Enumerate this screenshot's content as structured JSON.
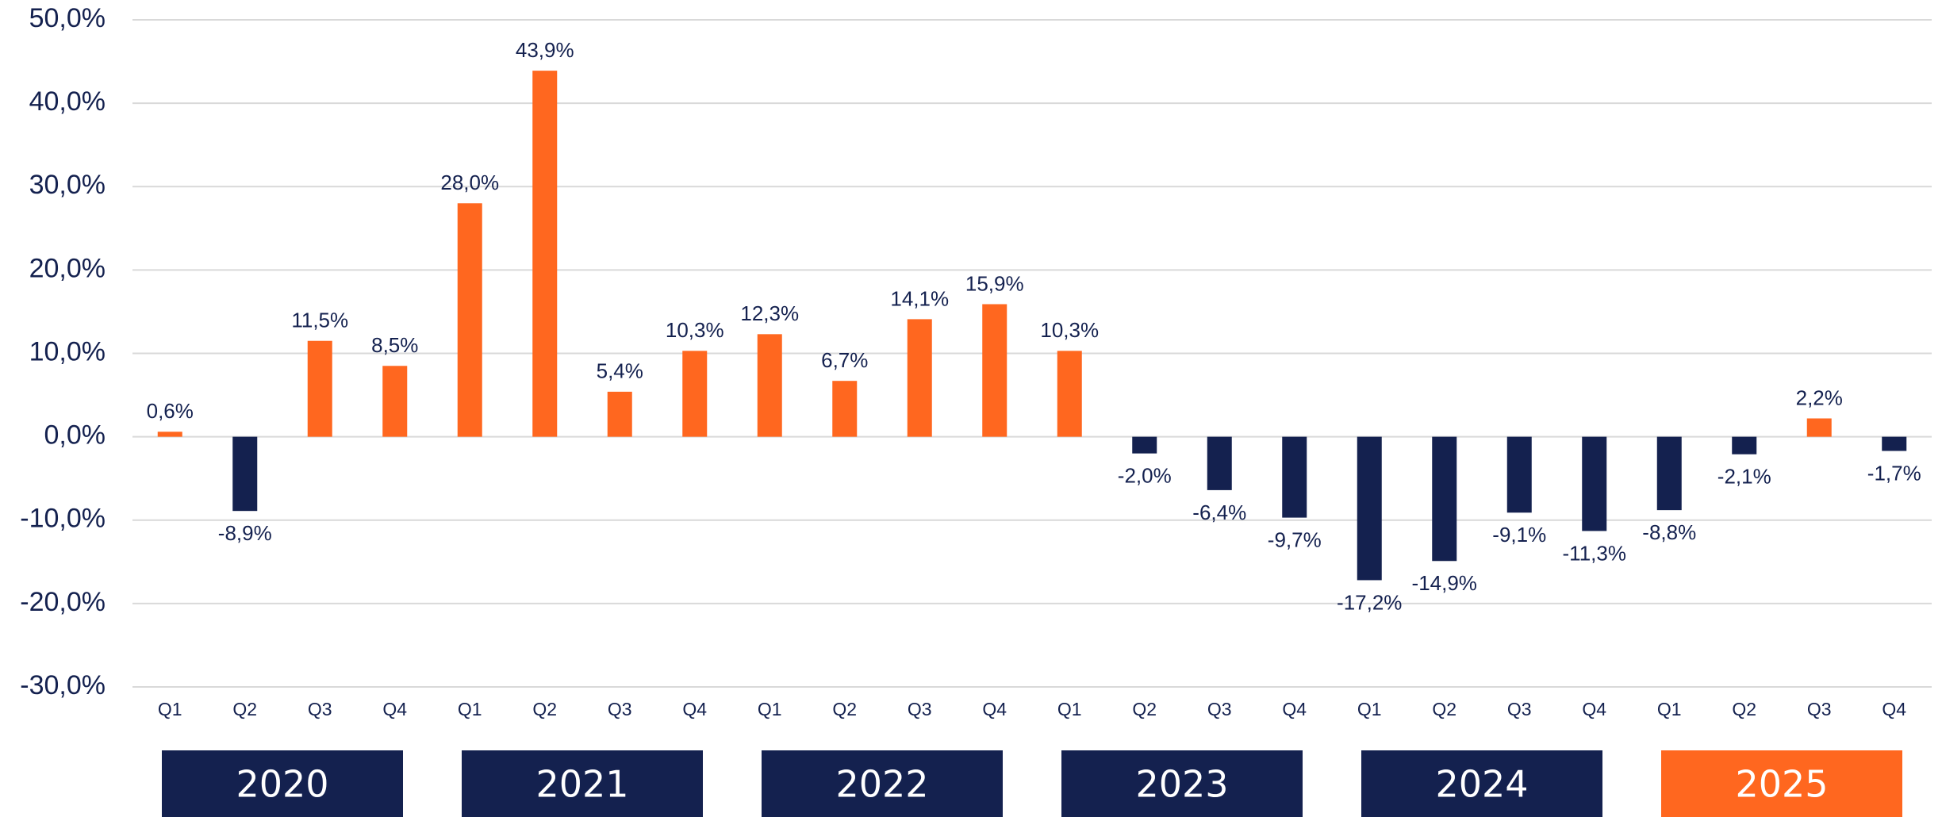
{
  "chart_data": {
    "type": "bar",
    "categories": [
      "Q1",
      "Q2",
      "Q3",
      "Q4",
      "Q1",
      "Q2",
      "Q3",
      "Q4",
      "Q1",
      "Q2",
      "Q3",
      "Q4",
      "Q1",
      "Q2",
      "Q3",
      "Q4",
      "Q1",
      "Q2",
      "Q3",
      "Q4",
      "Q1",
      "Q2",
      "Q3",
      "Q4"
    ],
    "values": [
      0.6,
      -8.9,
      11.5,
      8.5,
      28.0,
      43.9,
      5.4,
      10.3,
      12.3,
      6.7,
      14.1,
      15.9,
      10.3,
      -2.0,
      -6.4,
      -9.7,
      -17.2,
      -14.9,
      -9.1,
      -11.3,
      -8.8,
      -2.1,
      2.2,
      -1.7
    ],
    "value_labels": [
      "0,6%",
      "-8,9%",
      "11,5%",
      "8,5%",
      "28,0%",
      "43,9%",
      "5,4%",
      "10,3%",
      "12,3%",
      "6,7%",
      "14,1%",
      "15,9%",
      "10,3%",
      "-2,0%",
      "-6,4%",
      "-9,7%",
      "-17,2%",
      "-14,9%",
      "-9,1%",
      "-11,3%",
      "-8,8%",
      "-2,1%",
      "2,2%",
      "-1,7%"
    ],
    "colors": [
      "#ff671f",
      "#14214f",
      "#ff671f",
      "#ff671f",
      "#ff671f",
      "#ff671f",
      "#ff671f",
      "#ff671f",
      "#ff671f",
      "#ff671f",
      "#ff671f",
      "#ff671f",
      "#ff671f",
      "#14214f",
      "#14214f",
      "#14214f",
      "#14214f",
      "#14214f",
      "#14214f",
      "#14214f",
      "#14214f",
      "#14214f",
      "#ff671f",
      "#14214f"
    ],
    "groups": [
      {
        "label": "2020",
        "color": "#14214f"
      },
      {
        "label": "2021",
        "color": "#14214f"
      },
      {
        "label": "2022",
        "color": "#14214f"
      },
      {
        "label": "2023",
        "color": "#14214f"
      },
      {
        "label": "2024",
        "color": "#14214f"
      },
      {
        "label": "2025",
        "color": "#ff671f"
      }
    ],
    "ylim": [
      -30,
      50
    ],
    "yticks": [
      {
        "value": -30,
        "label": "-30,0%"
      },
      {
        "value": -20,
        "label": "-20,0%"
      },
      {
        "value": -10,
        "label": "-10,0%"
      },
      {
        "value": 0,
        "label": "0,0%"
      },
      {
        "value": 10,
        "label": "10,0%"
      },
      {
        "value": 20,
        "label": "20,0%"
      },
      {
        "value": 30,
        "label": "30,0%"
      },
      {
        "value": 40,
        "label": "40,0%"
      },
      {
        "value": 50,
        "label": "50,0%"
      }
    ],
    "grid": true
  }
}
